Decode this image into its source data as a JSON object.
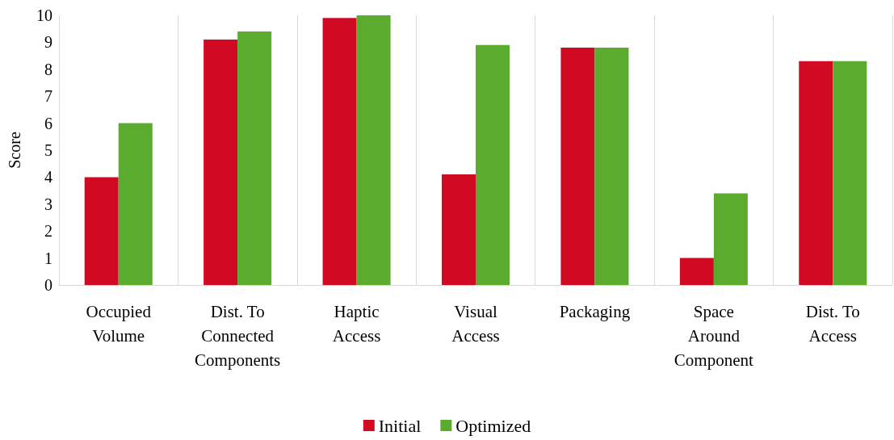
{
  "chart_data": {
    "type": "bar",
    "ylabel": "Score",
    "categories": [
      "Occupied\nVolume",
      "Dist. To\nConnected\nComponents",
      "Haptic\nAccess",
      "Visual\nAccess",
      "Packaging",
      "Space\nAround\nComponent",
      "Dist. To\nAccess"
    ],
    "series": [
      {
        "name": "Initial",
        "color": "#d00a22",
        "values": [
          4,
          9.1,
          9.9,
          4.1,
          8.8,
          1.0,
          8.3
        ]
      },
      {
        "name": "Optimized",
        "color": "#5aab2e",
        "values": [
          6,
          9.4,
          10,
          8.9,
          8.8,
          3.4,
          8.3
        ]
      }
    ],
    "ylim": [
      0,
      10
    ],
    "yticks": [
      0,
      1,
      2,
      3,
      4,
      5,
      6,
      7,
      8,
      9,
      10
    ],
    "grid": "x",
    "legend": "bottom"
  }
}
